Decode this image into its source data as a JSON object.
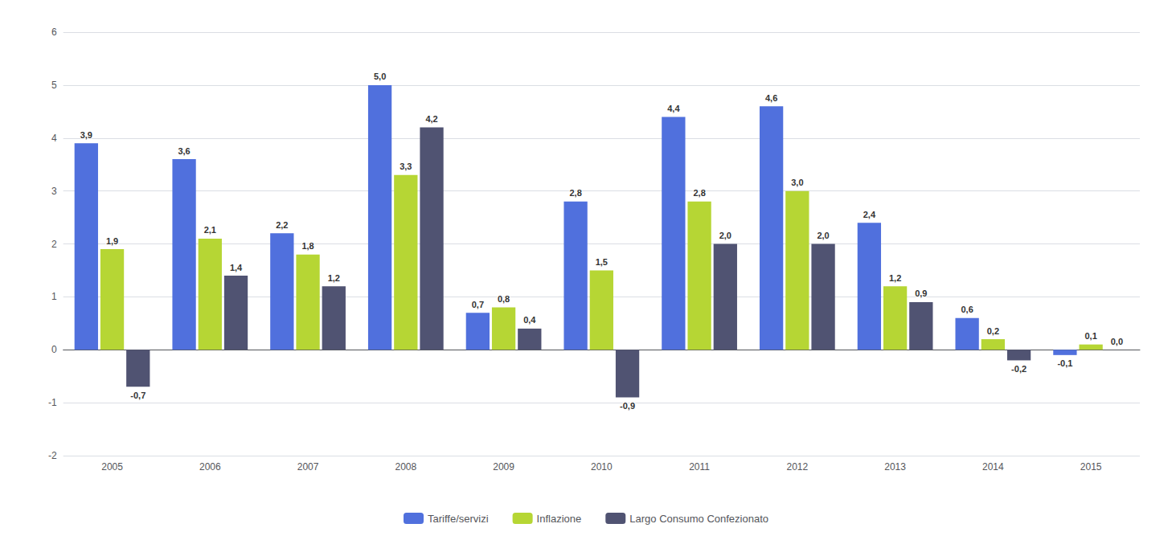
{
  "chart_data": {
    "type": "bar",
    "categories": [
      "2005",
      "2006",
      "2007",
      "2008",
      "2009",
      "2010",
      "2011",
      "2012",
      "2013",
      "2014",
      "2015"
    ],
    "series": [
      {
        "name": "Tariffe/servizi",
        "values": [
          3.9,
          3.6,
          2.2,
          5.0,
          0.7,
          2.8,
          4.4,
          4.6,
          2.4,
          0.6,
          -0.1
        ],
        "value_labels": [
          "3,9",
          "3,6",
          "2,2",
          "5,0",
          "0,7",
          "2,8",
          "4,4",
          "4,6",
          "2,4",
          "0,6",
          "-0,1"
        ]
      },
      {
        "name": "Inflazione",
        "values": [
          1.9,
          2.1,
          1.8,
          3.3,
          0.8,
          1.5,
          2.8,
          3.0,
          1.2,
          0.2,
          0.1
        ],
        "value_labels": [
          "1,9",
          "2,1",
          "1,8",
          "3,3",
          "0,8",
          "1,5",
          "2,8",
          "3,0",
          "1,2",
          "0,2",
          "0,1"
        ]
      },
      {
        "name": "Largo Consumo Confezionato",
        "values": [
          -0.7,
          1.4,
          1.2,
          4.2,
          0.4,
          -0.9,
          2.0,
          2.0,
          0.9,
          -0.2,
          0.0
        ],
        "value_labels": [
          "-0,7",
          "1,4",
          "1,2",
          "4,2",
          "0,4",
          "-0,9",
          "2,0",
          "2,0",
          "0,9",
          "-0,2",
          "0,0"
        ]
      }
    ],
    "ylim": [
      -2,
      6
    ],
    "yticks": [
      -2,
      -1,
      0,
      1,
      2,
      3,
      4,
      5,
      6
    ],
    "grid": true,
    "legend": "bottom",
    "data_labels": true
  }
}
